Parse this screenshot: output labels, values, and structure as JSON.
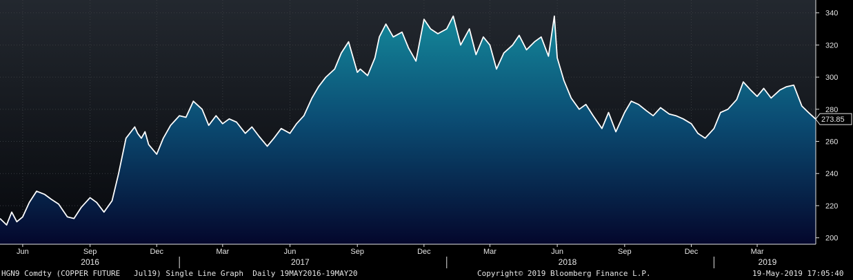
{
  "chart_data": {
    "type": "area",
    "ticker": "HGN9 Comdty (COPPER FUTURE   Jul19) Single Line Graph  Daily 19MAY2016-19MAY20",
    "ylim": [
      196,
      348
    ],
    "xlim": [
      "2016-05-01",
      "2019-05-20"
    ],
    "y_ticks": [
      200,
      220,
      240,
      260,
      280,
      300,
      320,
      340
    ],
    "month_ticks": [
      {
        "label": "Jun",
        "date": "2016-06-01"
      },
      {
        "label": "Sep",
        "date": "2016-09-01"
      },
      {
        "label": "Dec",
        "date": "2016-12-01"
      },
      {
        "label": "Mar",
        "date": "2017-03-01"
      },
      {
        "label": "Jun",
        "date": "2017-06-01"
      },
      {
        "label": "Sep",
        "date": "2017-09-01"
      },
      {
        "label": "Dec",
        "date": "2017-12-01"
      },
      {
        "label": "Mar",
        "date": "2018-03-01"
      },
      {
        "label": "Jun",
        "date": "2018-06-01"
      },
      {
        "label": "Sep",
        "date": "2018-09-01"
      },
      {
        "label": "Dec",
        "date": "2018-12-01"
      },
      {
        "label": "Mar",
        "date": "2019-03-01"
      }
    ],
    "year_labels": [
      {
        "label": "2016",
        "date": "2016-09-01"
      },
      {
        "label": "2017",
        "date": "2017-06-15"
      },
      {
        "label": "2018",
        "date": "2018-06-15"
      },
      {
        "label": "2019",
        "date": "2019-03-15"
      }
    ],
    "year_separators": [
      "2017-01-01",
      "2018-01-01",
      "2019-01-01"
    ],
    "last_value_label": "273.85",
    "series": [
      {
        "x": [
          "2016-05-01",
          "2016-05-10",
          "2016-05-17",
          "2016-05-24",
          "2016-06-01",
          "2016-06-10",
          "2016-06-20",
          "2016-07-01",
          "2016-07-10",
          "2016-07-20",
          "2016-08-01",
          "2016-08-10",
          "2016-08-20",
          "2016-09-01",
          "2016-09-10",
          "2016-09-20",
          "2016-10-01",
          "2016-10-10",
          "2016-10-20",
          "2016-11-01",
          "2016-11-05",
          "2016-11-10",
          "2016-11-15",
          "2016-11-20",
          "2016-12-01",
          "2016-12-10",
          "2016-12-20",
          "2017-01-01",
          "2017-01-10",
          "2017-01-20",
          "2017-02-01",
          "2017-02-10",
          "2017-02-20",
          "2017-03-01",
          "2017-03-10",
          "2017-03-20",
          "2017-04-01",
          "2017-04-10",
          "2017-04-20",
          "2017-05-01",
          "2017-05-10",
          "2017-05-20",
          "2017-06-01",
          "2017-06-10",
          "2017-06-20",
          "2017-07-01",
          "2017-07-10",
          "2017-07-20",
          "2017-08-01",
          "2017-08-10",
          "2017-08-20",
          "2017-09-01",
          "2017-09-05",
          "2017-09-15",
          "2017-09-25",
          "2017-10-01",
          "2017-10-10",
          "2017-10-20",
          "2017-11-01",
          "2017-11-10",
          "2017-11-20",
          "2017-12-01",
          "2017-12-10",
          "2017-12-20",
          "2018-01-01",
          "2018-01-10",
          "2018-01-20",
          "2018-02-01",
          "2018-02-10",
          "2018-02-20",
          "2018-03-01",
          "2018-03-10",
          "2018-03-20",
          "2018-04-01",
          "2018-04-10",
          "2018-04-20",
          "2018-05-01",
          "2018-05-10",
          "2018-05-20",
          "2018-05-28",
          "2018-06-01",
          "2018-06-10",
          "2018-06-20",
          "2018-07-01",
          "2018-07-10",
          "2018-07-20",
          "2018-08-01",
          "2018-08-10",
          "2018-08-20",
          "2018-09-01",
          "2018-09-10",
          "2018-09-20",
          "2018-10-01",
          "2018-10-10",
          "2018-10-20",
          "2018-11-01",
          "2018-11-10",
          "2018-11-20",
          "2018-12-01",
          "2018-12-10",
          "2018-12-20",
          "2019-01-01",
          "2019-01-10",
          "2019-01-20",
          "2019-02-01",
          "2019-02-10",
          "2019-02-20",
          "2019-03-01",
          "2019-03-10",
          "2019-03-20",
          "2019-04-01",
          "2019-04-10",
          "2019-04-20",
          "2019-05-01",
          "2019-05-10",
          "2019-05-20"
        ],
        "y": [
          212,
          208,
          216,
          210,
          213,
          222,
          229,
          227,
          224,
          221,
          213,
          212,
          219,
          225,
          222,
          216,
          223,
          240,
          262,
          269,
          265,
          262,
          266,
          258,
          252,
          262,
          270,
          276,
          275,
          285,
          280,
          270,
          276,
          271,
          274,
          272,
          265,
          269,
          263,
          257,
          262,
          268,
          265,
          271,
          276,
          287,
          294,
          300,
          305,
          315,
          322,
          303,
          305,
          301,
          312,
          325,
          333,
          325,
          328,
          318,
          310,
          336,
          330,
          327,
          330,
          338,
          320,
          330,
          314,
          325,
          320,
          305,
          315,
          320,
          326,
          317,
          322,
          325,
          313,
          338,
          312,
          298,
          287,
          280,
          283,
          276,
          268,
          278,
          266,
          278,
          285,
          283,
          279,
          276,
          281,
          277,
          276,
          274,
          271,
          265,
          262,
          268,
          278,
          280,
          286,
          297,
          292,
          288,
          293,
          287,
          292,
          294,
          295,
          282,
          278,
          273.85
        ]
      }
    ]
  },
  "footer": {
    "ticker": "HGN9 Comdty (COPPER FUTURE   Jul19) Single Line Graph  Daily 19MAY2016-19MAY20",
    "copyright": "Copyright© 2019 Bloomberg Finance L.P.",
    "timestamp": "19-May-2019 17:05:40"
  },
  "colors": {
    "area_top": "#127a8c",
    "area_bottom": "#05082e",
    "line": "#ffffff",
    "grid": "#3c3c3c",
    "plot_bg_top": "#23282f",
    "plot_bg_bottom": "#06080c"
  }
}
